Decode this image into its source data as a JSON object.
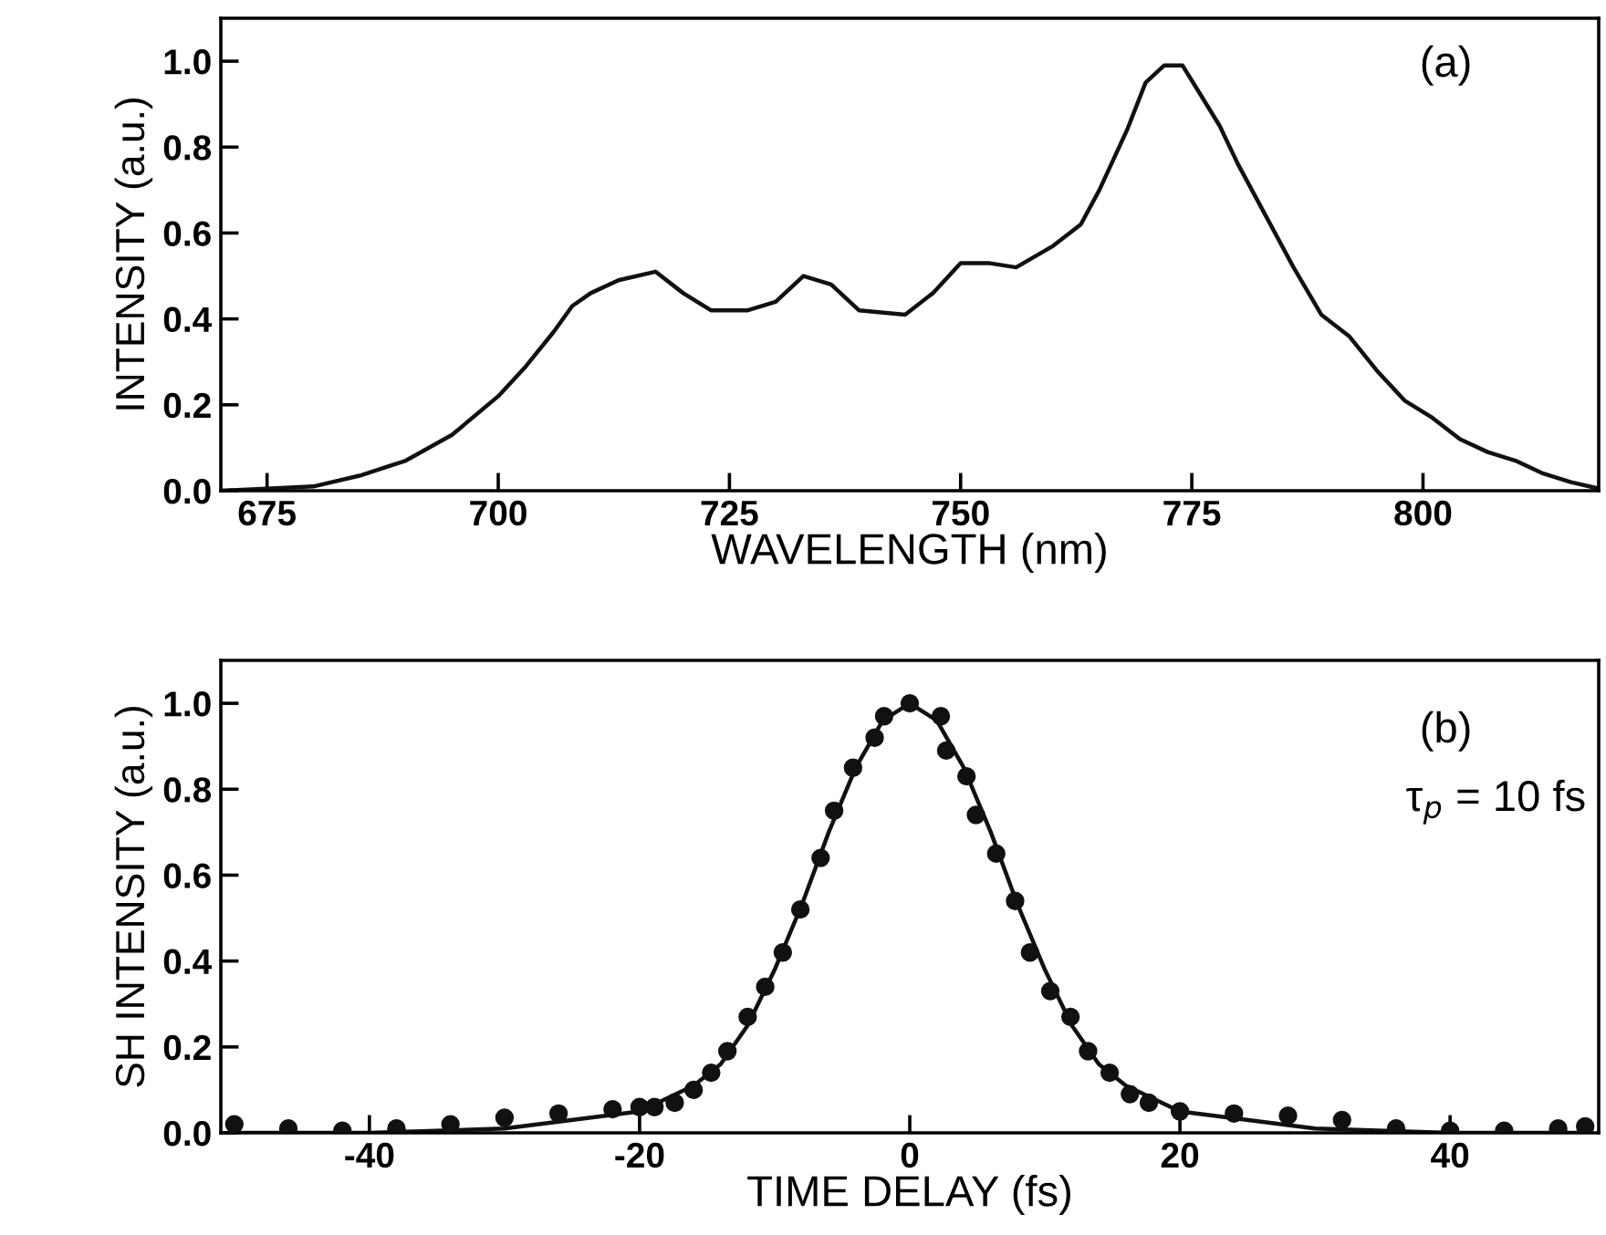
{
  "chart_data": [
    {
      "type": "line",
      "xlabel": "WAVELENGTH (nm)",
      "ylabel": "INTENSITY (a.u.)",
      "annotations": [
        "(a)"
      ],
      "xlim": [
        670,
        819
      ],
      "xticks": [
        675,
        700,
        725,
        750,
        775,
        800
      ],
      "ylim": [
        0,
        1.1
      ],
      "yticks": [
        {
          "value": 0,
          "label": "0.0"
        },
        {
          "value": 0.2,
          "label": "0.2"
        },
        {
          "value": 0.4,
          "label": "0.4"
        },
        {
          "value": 0.6,
          "label": "0.6"
        },
        {
          "value": 0.8,
          "label": "0.8"
        },
        {
          "value": 1.0,
          "label": "1.0"
        }
      ],
      "grid": false,
      "series": [
        {
          "color": "#111111",
          "x": [
            670,
            675,
            680,
            685,
            690,
            695,
            700,
            703,
            706,
            708,
            710,
            713,
            717,
            720,
            723,
            727,
            730,
            733,
            736,
            739,
            744,
            747,
            750,
            753,
            756,
            760,
            763,
            765,
            768,
            770,
            772,
            774,
            776,
            778,
            780,
            783,
            786,
            789,
            792,
            795,
            798,
            801,
            804,
            807,
            810,
            813,
            816,
            819
          ],
          "values": [
            0,
            0.005,
            0.01,
            0.035,
            0.07,
            0.13,
            0.22,
            0.29,
            0.37,
            0.43,
            0.46,
            0.49,
            0.51,
            0.46,
            0.42,
            0.42,
            0.44,
            0.5,
            0.48,
            0.42,
            0.41,
            0.46,
            0.53,
            0.53,
            0.52,
            0.57,
            0.62,
            0.7,
            0.84,
            0.95,
            0.99,
            0.99,
            0.92,
            0.85,
            0.76,
            0.64,
            0.52,
            0.41,
            0.36,
            0.28,
            0.21,
            0.17,
            0.12,
            0.09,
            0.07,
            0.04,
            0.02,
            0.005
          ]
        }
      ]
    },
    {
      "type": "scatter",
      "xlabel": "TIME DELAY (fs)",
      "ylabel": "SH INTENSITY (a.u.)",
      "annotations": [
        "(b)",
        "τ$_{p}$ = 10 fs"
      ],
      "xlim": [
        -51,
        51
      ],
      "xticks": [
        -40,
        -20,
        0,
        20,
        40
      ],
      "ylim": [
        0,
        1.1
      ],
      "yticks": [
        {
          "value": 0,
          "label": "0.0"
        },
        {
          "value": 0.2,
          "label": "0.2"
        },
        {
          "value": 0.4,
          "label": "0.4"
        },
        {
          "value": 0.6,
          "label": "0.6"
        },
        {
          "value": 0.8,
          "label": "0.8"
        },
        {
          "value": 1.0,
          "label": "1.0"
        }
      ],
      "grid": false,
      "series": [
        {
          "type": "line",
          "marker": "none",
          "color": "#111111",
          "x": [
            -50,
            -40,
            -30,
            -20,
            -16,
            -14,
            -12,
            -10,
            -8,
            -6,
            -4,
            -2,
            0,
            2,
            4,
            6,
            8,
            10,
            12,
            14,
            16,
            20,
            30,
            40,
            50
          ],
          "values": [
            0,
            0,
            0.01,
            0.05,
            0.11,
            0.16,
            0.25,
            0.38,
            0.53,
            0.7,
            0.85,
            0.96,
            1.0,
            0.96,
            0.85,
            0.7,
            0.53,
            0.38,
            0.25,
            0.16,
            0.11,
            0.05,
            0.01,
            0,
            0
          ]
        },
        {
          "marker": "circle",
          "color": "#111111",
          "x": [
            -50,
            -46,
            -42,
            -38,
            -34,
            -30,
            -26,
            -22,
            -20,
            -18.9,
            -17.4,
            -16,
            -14.7,
            -13.5,
            -12,
            -10.7,
            -9.4,
            -8.1,
            -6.6,
            -5.6,
            -4.2,
            -2.6,
            -1.9,
            0,
            2.3,
            2.7,
            4.2,
            4.9,
            6.4,
            7.8,
            8.9,
            10.4,
            11.9,
            13.2,
            14.8,
            16.3,
            17.7,
            20,
            24,
            28,
            32,
            36,
            40,
            44,
            48,
            50
          ],
          "values": [
            0.02,
            0.01,
            0.005,
            0.01,
            0.02,
            0.035,
            0.045,
            0.055,
            0.06,
            0.06,
            0.07,
            0.1,
            0.14,
            0.19,
            0.27,
            0.34,
            0.42,
            0.52,
            0.64,
            0.75,
            0.85,
            0.92,
            0.97,
            1.0,
            0.97,
            0.89,
            0.83,
            0.74,
            0.65,
            0.54,
            0.42,
            0.33,
            0.27,
            0.19,
            0.14,
            0.09,
            0.07,
            0.05,
            0.045,
            0.04,
            0.03,
            0.01,
            0.005,
            0.005,
            0.01,
            0.015
          ]
        }
      ]
    }
  ]
}
